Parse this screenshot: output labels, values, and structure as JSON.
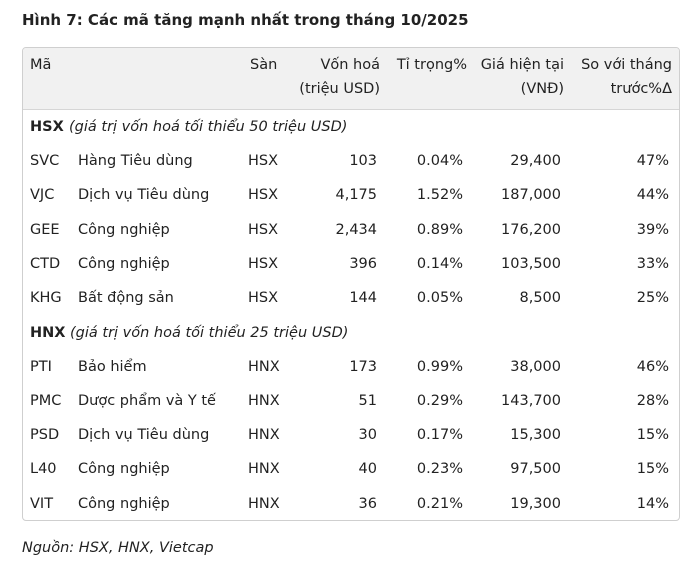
{
  "title": "Hình 7: Các mã tăng mạnh nhất trong tháng 10/2025",
  "table": {
    "header": [
      [
        "Mã"
      ],
      [
        "Sàn"
      ],
      [
        "Vốn hoá",
        "(triệu USD)"
      ],
      [
        "Tỉ trọng%"
      ],
      [
        "Giá hiện tại",
        "(VNĐ)"
      ],
      [
        "So với tháng",
        "trước%Δ"
      ]
    ],
    "groups": [
      {
        "exchange": "HSX",
        "note": "(giá trị vốn hoá tối thiểu 50 triệu USD)",
        "rows": [
          [
            "SVC",
            "Hàng Tiêu dùng",
            "HSX",
            "103",
            "0.04%",
            "29,400",
            "47%"
          ],
          [
            "VJC",
            "Dịch vụ Tiêu dùng",
            "HSX",
            "4,175",
            "1.52%",
            "187,000",
            "44%"
          ],
          [
            "GEE",
            "Công nghiệp",
            "HSX",
            "2,434",
            "0.89%",
            "176,200",
            "39%"
          ],
          [
            "CTD",
            "Công nghiệp",
            "HSX",
            "396",
            "0.14%",
            "103,500",
            "33%"
          ],
          [
            "KHG",
            "Bất động sản",
            "HSX",
            "144",
            "0.05%",
            "8,500",
            "25%"
          ]
        ]
      },
      {
        "exchange": "HNX",
        "note": "(giá trị vốn hoá tối thiểu 25 triệu USD)",
        "rows": [
          [
            "PTI",
            "Bảo hiểm",
            "HNX",
            "173",
            "0.99%",
            "38,000",
            "46%"
          ],
          [
            "PMC",
            "Dược phẩm và Y tế",
            "HNX",
            "51",
            "0.29%",
            "143,700",
            "28%"
          ],
          [
            "PSD",
            "Dịch vụ Tiêu dùng",
            "HNX",
            "30",
            "0.17%",
            "15,300",
            "15%"
          ],
          [
            "L40",
            "Công nghiệp",
            "HNX",
            "40",
            "0.23%",
            "97,500",
            "15%"
          ],
          [
            "VIT",
            "Công nghiệp",
            "HNX",
            "36",
            "0.21%",
            "19,300",
            "14%"
          ]
        ]
      }
    ]
  },
  "source": "Nguồn: HSX, HNX, Vietcap"
}
